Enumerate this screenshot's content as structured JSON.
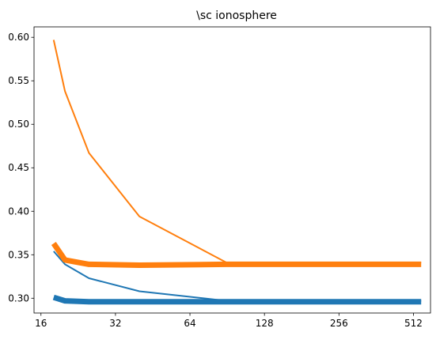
{
  "chart_data": {
    "type": "line",
    "title": "\\sc ionosphere",
    "xlabel": "",
    "ylabel": "",
    "xscale": "log2",
    "xlim": [
      15,
      600
    ],
    "ylim": [
      0.283,
      0.612
    ],
    "xticks": [
      16,
      32,
      64,
      128,
      256,
      512
    ],
    "xtick_labels": [
      "16",
      "32",
      "64",
      "128",
      "256",
      "512"
    ],
    "yticks": [
      0.3,
      0.35,
      0.4,
      0.45,
      0.5,
      0.55,
      0.6
    ],
    "ytick_labels": [
      "0.30",
      "0.35",
      "0.40",
      "0.45",
      "0.50",
      "0.55",
      "0.60"
    ],
    "grid": false,
    "legend": "none",
    "series": [
      {
        "color": "#1f77b4",
        "width": 2,
        "x": [
          18,
          20,
          25,
          40,
          90,
          550
        ],
        "y": [
          0.354,
          0.339,
          0.323,
          0.308,
          0.297,
          0.297
        ]
      },
      {
        "color": "#1f77b4",
        "width": 7,
        "x": [
          18,
          20,
          25,
          40,
          90,
          550
        ],
        "y": [
          0.301,
          0.297,
          0.296,
          0.296,
          0.296,
          0.296
        ]
      },
      {
        "color": "#ff7f0e",
        "width": 2,
        "x": [
          18,
          20,
          25,
          40,
          90,
          550
        ],
        "y": [
          0.597,
          0.538,
          0.467,
          0.394,
          0.341,
          0.341
        ]
      },
      {
        "color": "#ff7f0e",
        "width": 7,
        "x": [
          18,
          20,
          25,
          40,
          90,
          550
        ],
        "y": [
          0.363,
          0.344,
          0.339,
          0.338,
          0.339,
          0.339
        ]
      }
    ]
  }
}
